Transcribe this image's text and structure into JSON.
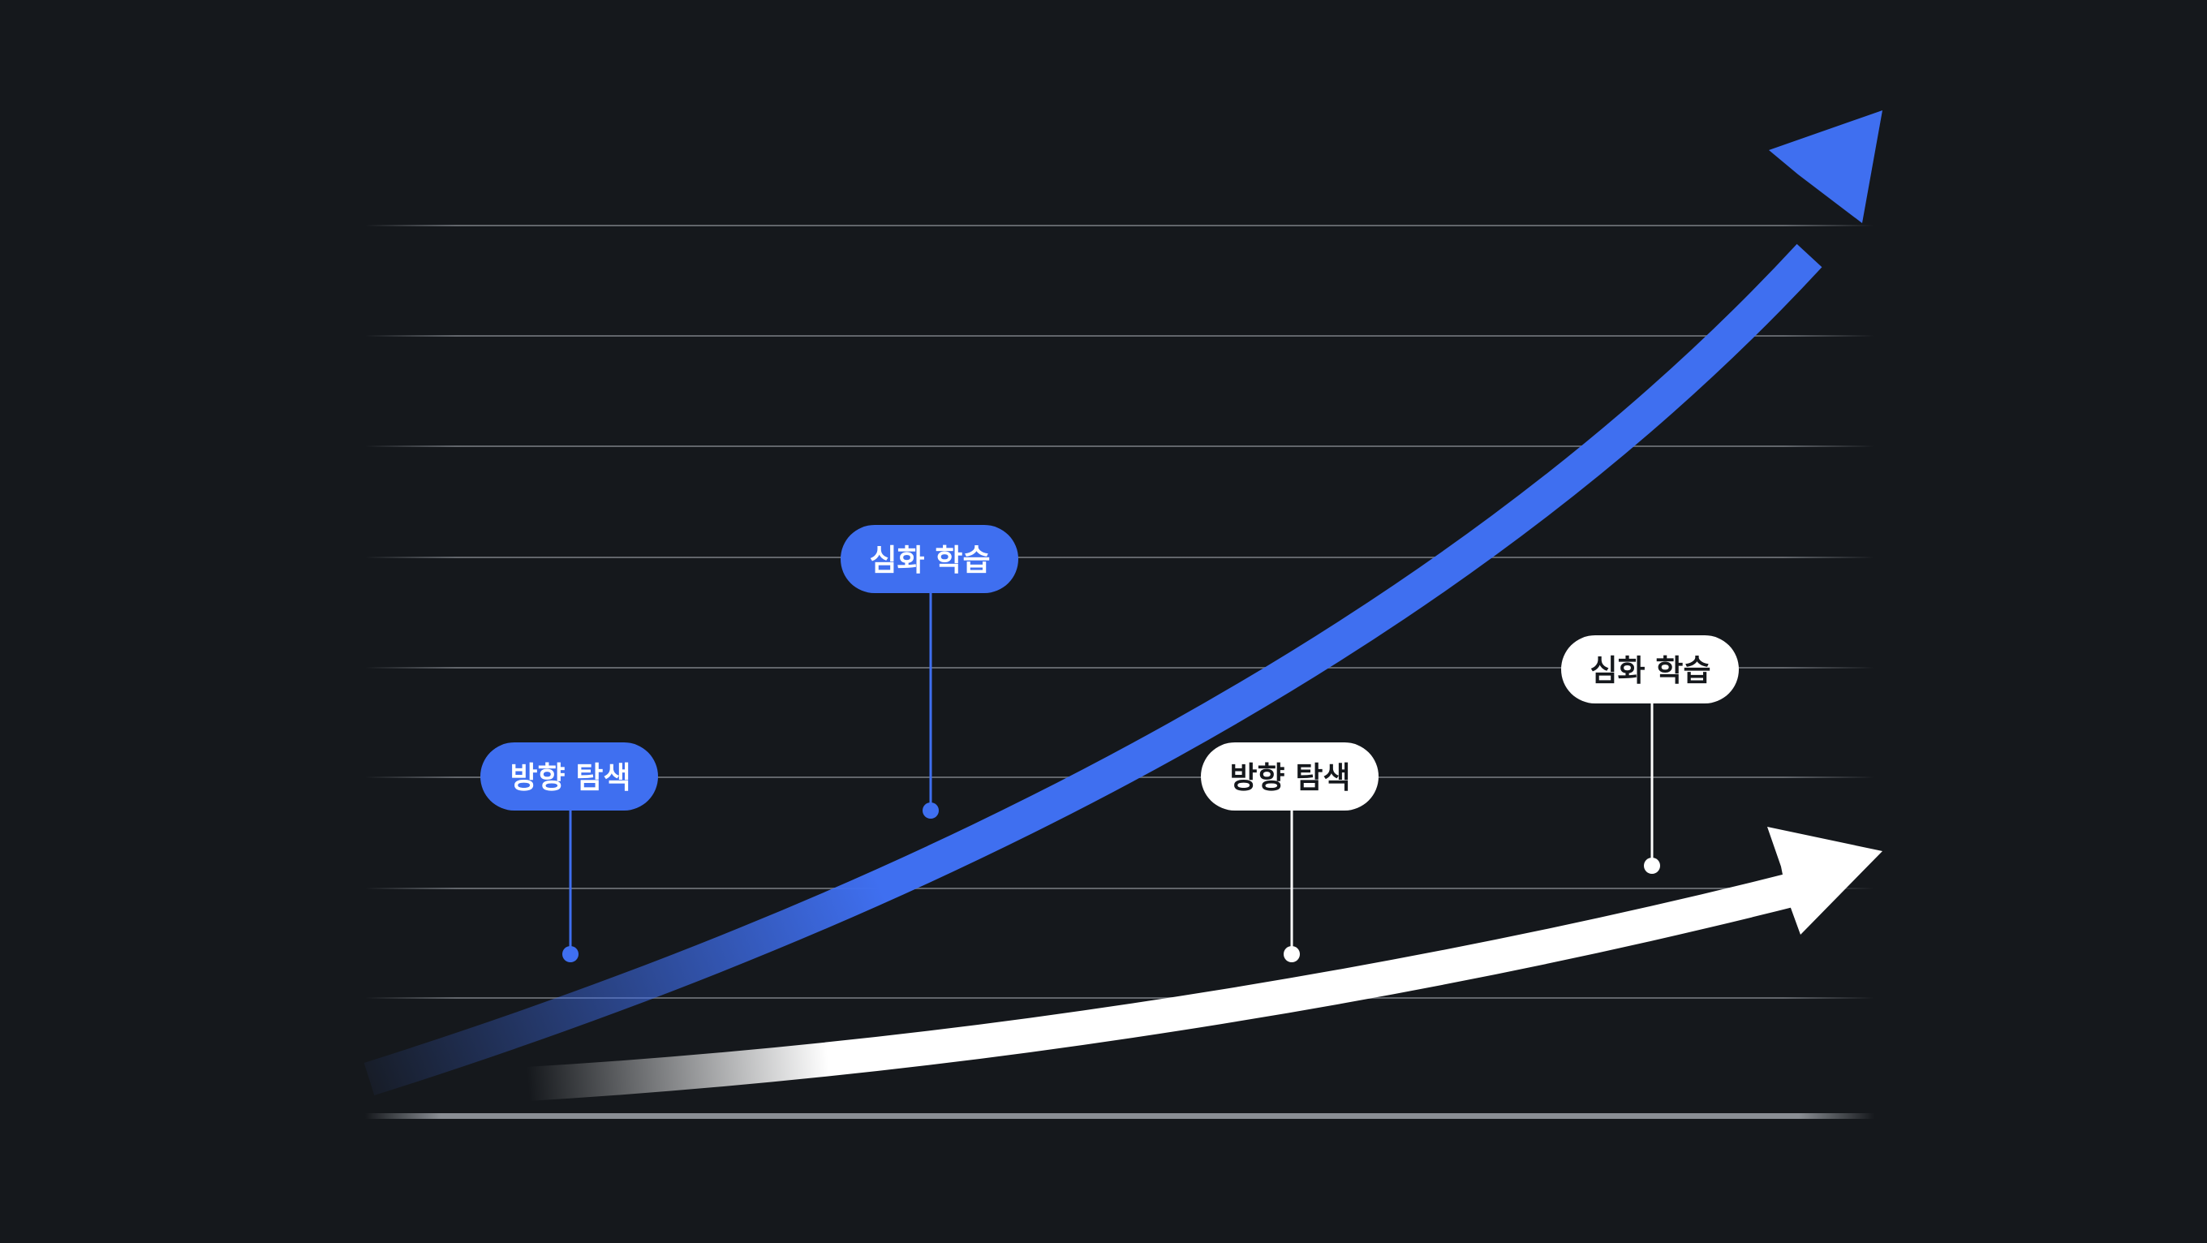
{
  "colors": {
    "background": "#15181c",
    "accent": "#3f6ff0",
    "secondary": "#ffffff",
    "gridline": "#5a5e64"
  },
  "blue_path": {
    "stage1_label": "방향 탐색",
    "stage2_label": "심화 학습"
  },
  "white_path": {
    "stage1_label": "방향 탐색",
    "stage2_label": "심화 학습"
  }
}
